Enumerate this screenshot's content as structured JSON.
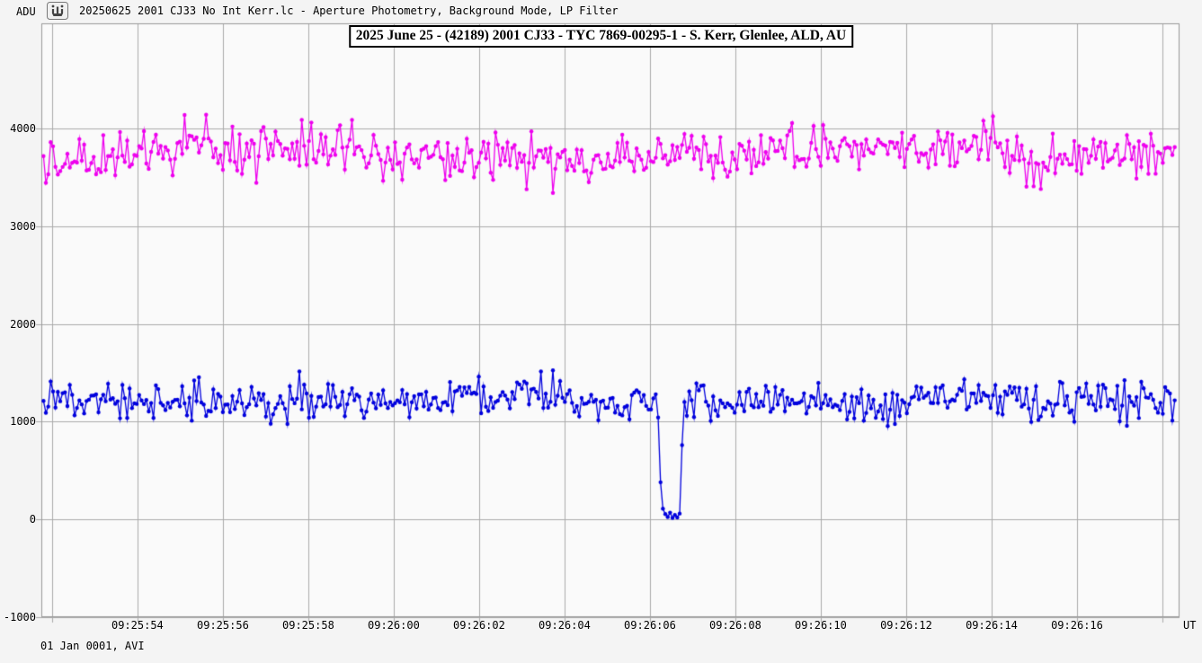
{
  "window": {
    "y_axis_unit": "ADU",
    "app_icon": "light-curve-app-icon",
    "title": "20250625 2001 CJ33 No Int Kerr.lc - Aperture Photometry, Background Mode, LP Filter",
    "footer_date": "01 Jan 0001, AVI",
    "x_axis_unit": "UT"
  },
  "chart_data": {
    "type": "line",
    "title": "2025 June 25 - (42189) 2001 CJ33 - TYC 7869-00295-1 - S. Kerr, Glenlee, ALD, AU",
    "ylabel": "ADU",
    "xlabel": "UT",
    "grid": true,
    "legend": "none",
    "ylim": [
      -1000,
      5075
    ],
    "y_ticks": [
      -1000,
      0,
      1000,
      2000,
      3000,
      4000
    ],
    "y_tick_labels": [
      "-1000",
      "0",
      "1000",
      "2000",
      "3000",
      "4000"
    ],
    "x_axis_start_s": 51.75,
    "x_axis_end_s": 78.4,
    "x_gridline_seconds": [
      52,
      54,
      56,
      58,
      60,
      62,
      64,
      66,
      68,
      70,
      72,
      74,
      76,
      78
    ],
    "x_ticks": [
      {
        "s": 54,
        "label": "09:25:54"
      },
      {
        "s": 56,
        "label": "09:25:56"
      },
      {
        "s": 58,
        "label": "09:25:58"
      },
      {
        "s": 60,
        "label": "09:26:00"
      },
      {
        "s": 62,
        "label": "09:26:02"
      },
      {
        "s": 64,
        "label": "09:26:04"
      },
      {
        "s": 66,
        "label": "09:26:06"
      },
      {
        "s": 68,
        "label": "09:26:08"
      },
      {
        "s": 70,
        "label": "09:26:10"
      },
      {
        "s": 72,
        "label": "09:26:12"
      },
      {
        "s": 74,
        "label": "09:26:14"
      },
      {
        "s": 76,
        "label": "09:26:16"
      }
    ],
    "sampling": {
      "t0_s": 51.8,
      "dt_s": 0.056,
      "count": 474
    },
    "colors": {
      "grid": "#aaaaaa",
      "frame": "#999999",
      "plot_bg": "#fafafa",
      "page_bg": "#f4f4f4",
      "title_box_border": "#000000",
      "title_box_bg": "#ffffff",
      "text": "#000000"
    },
    "series": [
      {
        "name": "magenta-upper-curve",
        "color": "#ee00ee",
        "level_adu": 3745,
        "noise_sd_adu": 130,
        "clamp_adu": [
          3340,
          4320
        ],
        "drift": [
          [
            65,
            0.45,
            0.8
          ],
          [
            40,
            1.7,
            2.1
          ]
        ],
        "seed": 20250625
      },
      {
        "name": "blue-target-curve",
        "color": "#0000dd",
        "level_adu": 1215,
        "noise_sd_adu": 95,
        "clamp_adu": [
          870,
          1545
        ],
        "drift": [
          [
            28,
            0.5,
            2.0
          ],
          [
            18,
            1.3,
            0.7
          ]
        ],
        "seed": 42189,
        "occultation": {
          "start_s": 66.245,
          "end_s": 66.755,
          "points": [
            [
              66.27,
              380
            ],
            [
              66.32,
              110
            ],
            [
              66.37,
              55
            ],
            [
              66.43,
              25
            ],
            [
              66.48,
              70
            ],
            [
              66.53,
              15
            ],
            [
              66.58,
              45
            ],
            [
              66.64,
              20
            ],
            [
              66.69,
              60
            ],
            [
              66.72,
              760
            ]
          ]
        }
      }
    ]
  }
}
